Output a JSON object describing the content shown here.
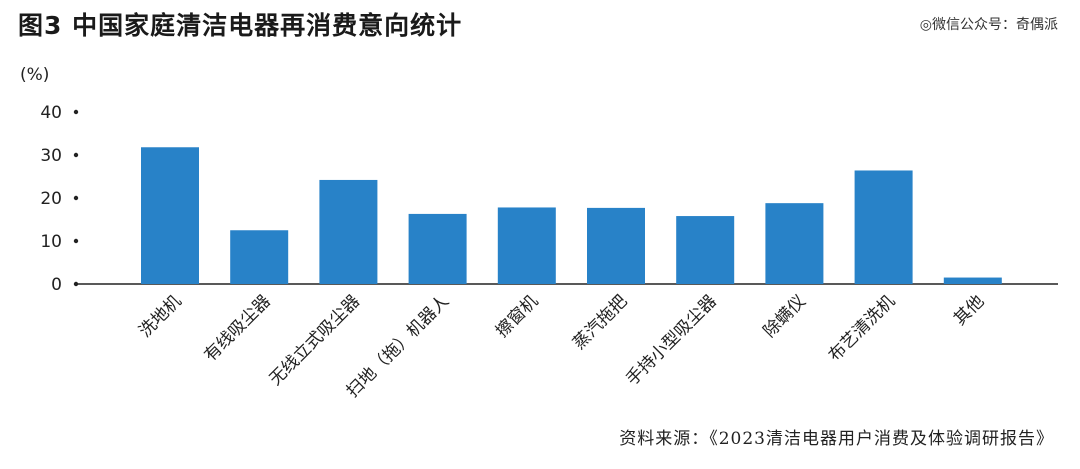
{
  "title": "图3  中国家庭清洁电器再消费意向统计",
  "watermark": "◎微信公众号：奇偶派",
  "source": "资料来源：《2023清洁电器用户消费及体验调研报告》",
  "colors": {
    "bar": "#2882c8",
    "axis": "#222222"
  },
  "chart_data": {
    "type": "bar",
    "title": "中国家庭清洁电器再消费意向统计",
    "xlabel": "",
    "ylabel": "(%)",
    "ylim": [
      0,
      40
    ],
    "yticks": [
      0,
      10,
      20,
      30,
      40
    ],
    "grid": false,
    "categories": [
      "洗地机",
      "有线吸尘器",
      "无线立式吸尘器",
      "扫地（拖）机器人",
      "擦窗机",
      "蒸汽拖把",
      "手持小型吸尘器",
      "除螨仪",
      "布艺清洗机",
      "其他"
    ],
    "values": [
      31.8,
      12.5,
      24.2,
      16.3,
      17.8,
      17.7,
      15.8,
      18.8,
      26.4,
      1.5
    ]
  }
}
